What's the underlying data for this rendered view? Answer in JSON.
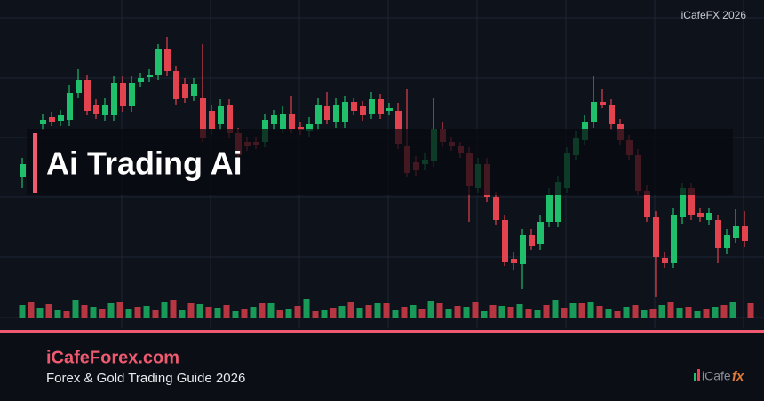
{
  "watermark": "iCafeFX 2026",
  "title": "Ai Trading Ai",
  "footer": {
    "brand": "iCafeForex.com",
    "tagline": "Forex & Gold Trading Guide 2026"
  },
  "logo": {
    "text": "iCafe",
    "accent": "fx"
  }
}
